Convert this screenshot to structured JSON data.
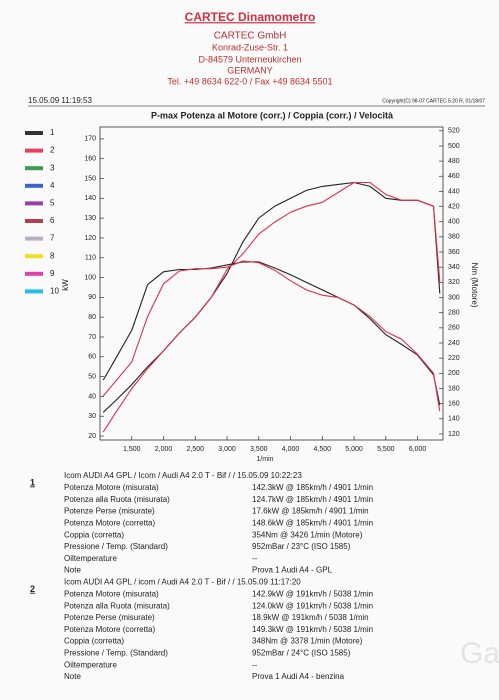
{
  "header": {
    "title": "CARTEC Dinamometro",
    "company": "CARTEC GmbH",
    "street": "Konrad-Zuse-Str. 1",
    "city": "D-84579 Unterneukirchen",
    "country": "GERMANY",
    "phone": "Tel. +49 8634  622-0 / Fax +49 8634 5501",
    "date": "15.05.09 11:19:53",
    "copyright": "Copyright(C) 98-07 CARTEC 5.20 R, 01/18/07"
  },
  "chart_data": {
    "type": "line",
    "title": "P-max Potenza al Motore (corr.) / Coppia (corr.) / Velocità",
    "xlabel": "1/min",
    "ylabel": "kW",
    "y2label": "Nm (Motore)",
    "x": [
      1050,
      1250,
      1500,
      1750,
      2000,
      2250,
      2500,
      2750,
      3000,
      3250,
      3500,
      3750,
      4000,
      4250,
      4500,
      4750,
      5000,
      5250,
      5500,
      5750,
      6000,
      6250,
      6350
    ],
    "series": [
      {
        "color": "#222222",
        "axis": "y",
        "values": [
          32,
          38,
          46,
          55,
          63,
          72,
          80,
          90,
          102,
          118,
          130,
          136,
          140,
          144,
          146,
          147,
          148,
          146,
          140,
          139,
          139,
          136,
          92
        ]
      },
      {
        "color": "#e0304a",
        "axis": "y",
        "values": [
          22,
          32,
          44,
          54,
          63,
          72,
          80,
          90,
          104,
          112,
          122,
          128,
          133,
          136,
          138,
          143,
          148,
          148,
          142,
          139,
          139,
          136,
          98
        ]
      },
      {
        "color": "#222222",
        "axis": "y2",
        "values": [
          191,
          220,
          257,
          317,
          334,
          337,
          337,
          339,
          343,
          347,
          347,
          339,
          330,
          320,
          310,
          300,
          290,
          272,
          251,
          238,
          224,
          198,
          158
        ]
      },
      {
        "color": "#e0304a",
        "axis": "y2",
        "values": [
          170,
          190,
          215,
          275,
          318,
          335,
          338,
          338,
          340,
          348,
          346,
          336,
          322,
          310,
          303,
          300,
          290,
          275,
          255,
          245,
          225,
          200,
          150
        ]
      }
    ],
    "xlim": [
      1000,
      6400
    ],
    "xticks": [
      {
        "value": 1500,
        "label": "1,500"
      },
      {
        "value": 2000,
        "label": "2,000"
      },
      {
        "value": 2500,
        "label": "2,500"
      },
      {
        "value": 3000,
        "label": "3,000"
      },
      {
        "value": 3500,
        "label": "3,500"
      },
      {
        "value": 4000,
        "label": "4,000"
      },
      {
        "value": 4500,
        "label": "4,500"
      },
      {
        "value": 5000,
        "label": "5,000"
      },
      {
        "value": 5500,
        "label": "5,500"
      },
      {
        "value": 6000,
        "label": "6,000"
      }
    ],
    "ylim": [
      18,
      176
    ],
    "yticks": [
      20,
      30,
      40,
      50,
      60,
      70,
      80,
      90,
      100,
      110,
      120,
      130,
      140,
      150,
      160,
      170
    ],
    "y2lim": [
      112,
      525
    ],
    "y2ticks": [
      120,
      140,
      160,
      180,
      200,
      220,
      240,
      260,
      280,
      300,
      320,
      340,
      360,
      380,
      400,
      420,
      440,
      460,
      480,
      500,
      520
    ],
    "legend": [
      {
        "label": "1",
        "color": "#333333"
      },
      {
        "label": "2",
        "color": "#e8405a"
      },
      {
        "label": "3",
        "color": "#3c9a50"
      },
      {
        "label": "4",
        "color": "#3a62c8"
      },
      {
        "label": "5",
        "color": "#9a40a8"
      },
      {
        "label": "6",
        "color": "#b04050"
      },
      {
        "label": "7",
        "color": "#b8b0c0"
      },
      {
        "label": "8",
        "color": "#f0e020"
      },
      {
        "label": "9",
        "color": "#e040b0"
      },
      {
        "label": "10",
        "color": "#20c0e8"
      }
    ]
  },
  "results": [
    {
      "number": "1",
      "header": "Icom AUDI A4 GPL / Icom / Audi A4 2.0 T - Bif / / 15.05.09 10:22:23",
      "rows": [
        [
          "Potenza Motore (misurata)",
          "142.3kW @ 185km/h / 4901 1/min"
        ],
        [
          "Potenza alla Ruota (misurata)",
          "124.7kW @ 185km/h / 4901 1/min"
        ],
        [
          "Potenze Perse (misurate)",
          "17.6kW @ 185km/h / 4901 1/min"
        ],
        [
          "Potenza Motore (corretta)",
          "148.6kW @ 185km/h / 4901 1/min"
        ],
        [
          "Coppia (corretta)",
          "354Nm @ 3426 1/min (Motore)"
        ],
        [
          "Pressione / Temp. (Standard)",
          "952mBar / 23°C   (ISO 1585)"
        ],
        [
          "Oiltemperature",
          "--"
        ],
        [
          "Note",
          "Prova 1 Audi A4 - GPL"
        ]
      ]
    },
    {
      "number": "2",
      "header": "Icom AUDI A4 GPL / icom / Audi A4 2.0 T - Bif / / 15.05.09 11:17:20",
      "rows": [
        [
          "Potenza Motore (misurata)",
          "142.9kW @ 191km/h / 5038 1/min"
        ],
        [
          "Potenza alla Ruota (misurata)",
          "124.0kW @ 191km/h / 5038 1/min"
        ],
        [
          "Potenze Perse (misurate)",
          "18.9kW @ 191km/h / 5038 1/min"
        ],
        [
          "Potenza Motore (corretta)",
          "149.3kW @ 191km/h / 5038 1/min"
        ],
        [
          "Coppia (corretta)",
          "348Nm @ 3378 1/min (Motore)"
        ],
        [
          "Pressione / Temp. (Standard)",
          "952mBar / 24°C   (ISO 1585)"
        ],
        [
          "Oiltemperature",
          "--"
        ],
        [
          "Note",
          "Prova 1 Audi A4 - benzina"
        ]
      ]
    }
  ],
  "watermark": "Gas"
}
